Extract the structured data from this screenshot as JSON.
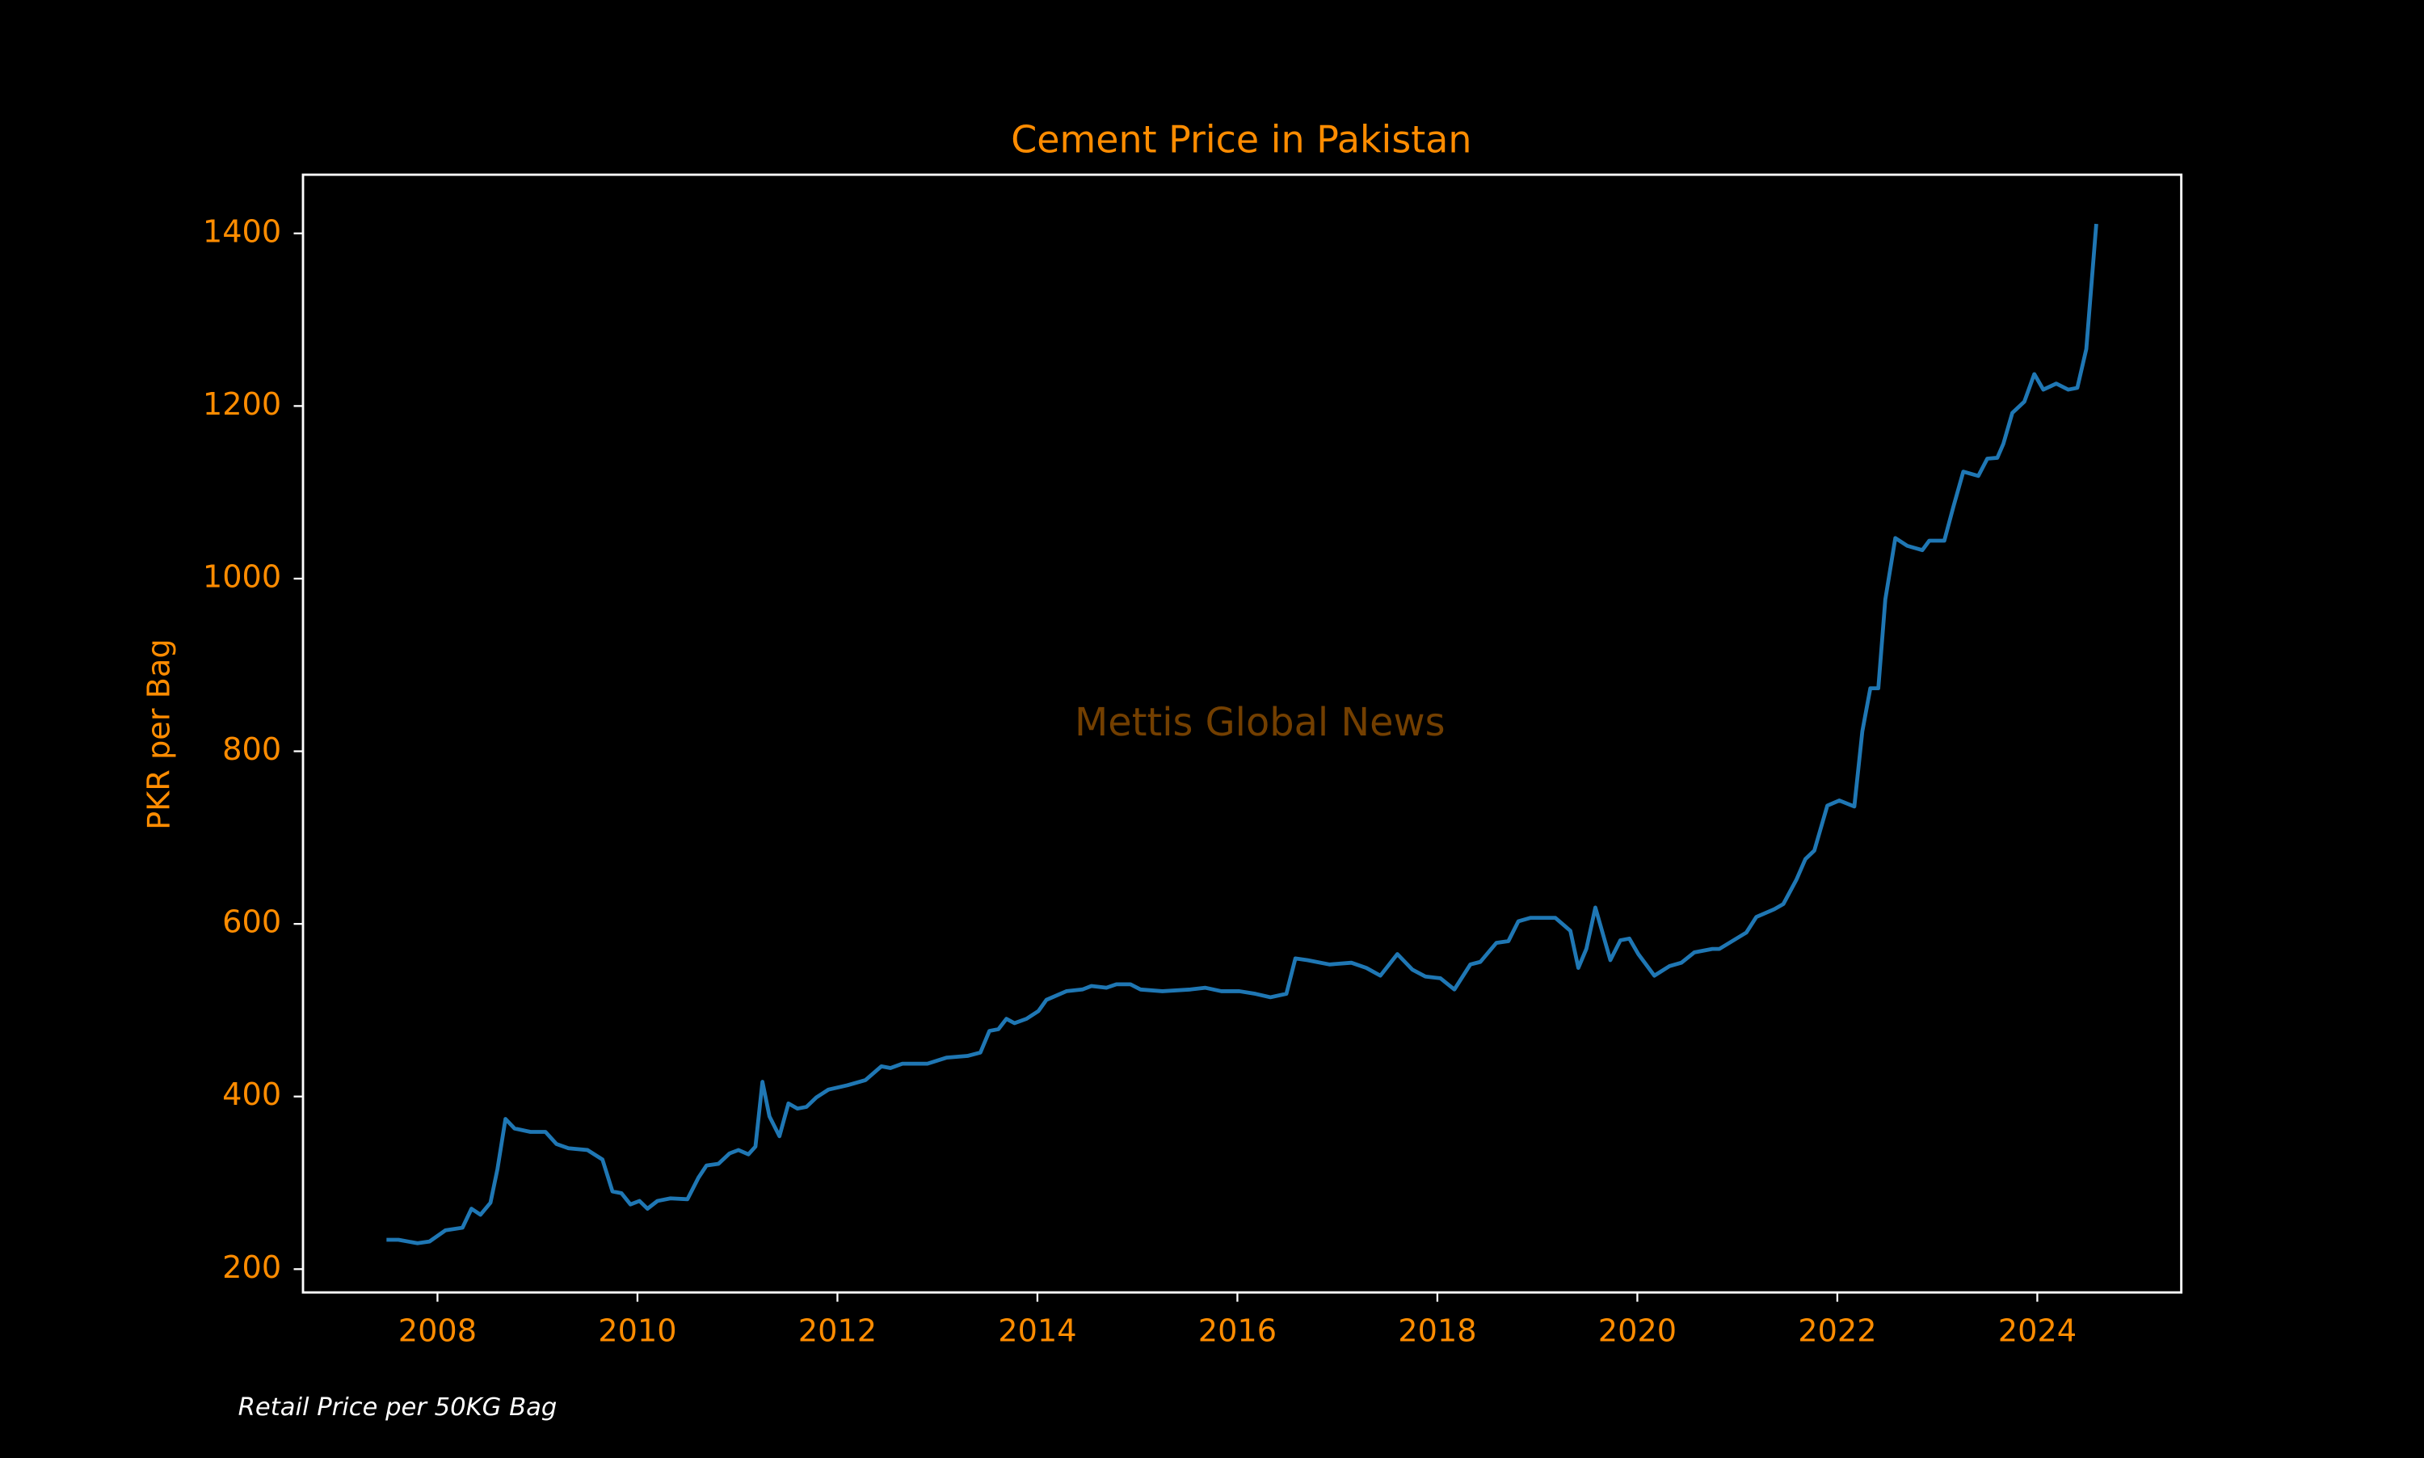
{
  "chart_data": {
    "type": "line",
    "title": "Cement Price in Pakistan",
    "ylabel": "PKR per Bag",
    "annotations": [
      "Mettis Global News",
      "Retail Price per 50KG Bag"
    ],
    "x": [
      2007.49,
      2007.61,
      2007.8,
      2007.92,
      2008.08,
      2008.25,
      2008.34,
      2008.43,
      2008.53,
      2008.6,
      2008.68,
      2008.77,
      2008.93,
      2009.08,
      2009.19,
      2009.31,
      2009.5,
      2009.65,
      2009.75,
      2009.84,
      2009.93,
      2010.02,
      2010.1,
      2010.2,
      2010.33,
      2010.5,
      2010.61,
      2010.69,
      2010.81,
      2010.92,
      2011.01,
      2011.11,
      2011.18,
      2011.25,
      2011.32,
      2011.42,
      2011.51,
      2011.6,
      2011.69,
      2011.79,
      2011.91,
      2012.1,
      2012.28,
      2012.44,
      2012.53,
      2012.65,
      2012.9,
      2013.09,
      2013.3,
      2013.43,
      2013.52,
      2013.61,
      2013.69,
      2013.77,
      2013.89,
      2014.01,
      2014.09,
      2014.29,
      2014.45,
      2014.54,
      2014.69,
      2014.79,
      2014.93,
      2015.03,
      2015.25,
      2015.53,
      2015.68,
      2015.84,
      2016.02,
      2016.18,
      2016.33,
      2016.49,
      2016.58,
      2016.7,
      2016.92,
      2017.14,
      2017.29,
      2017.43,
      2017.6,
      2017.75,
      2017.88,
      2018.03,
      2018.17,
      2018.33,
      2018.43,
      2018.59,
      2018.71,
      2018.81,
      2018.93,
      2019.18,
      2019.33,
      2019.41,
      2019.49,
      2019.58,
      2019.73,
      2019.83,
      2019.92,
      2020.01,
      2020.17,
      2020.32,
      2020.44,
      2020.57,
      2020.75,
      2020.82,
      2021.09,
      2021.19,
      2021.37,
      2021.46,
      2021.59,
      2021.68,
      2021.77,
      2021.9,
      2022.02,
      2022.17,
      2022.25,
      2022.33,
      2022.41,
      2022.48,
      2022.58,
      2022.7,
      2022.85,
      2022.92,
      2023.07,
      2023.16,
      2023.26,
      2023.41,
      2023.5,
      2023.6,
      2023.66,
      2023.75,
      2023.87,
      2023.97,
      2024.06,
      2024.19,
      2024.31,
      2024.4,
      2024.49,
      2024.59
    ],
    "series": [
      {
        "name": "Cement Price",
        "color": "#1f77b4",
        "values": [
          234,
          234,
          230,
          232,
          245,
          248,
          270,
          263,
          277,
          316,
          374,
          363,
          359,
          359,
          345,
          340,
          338,
          327,
          290,
          288,
          275,
          279,
          270,
          279,
          282,
          281,
          306,
          320,
          322,
          334,
          338,
          333,
          342,
          417,
          377,
          354,
          392,
          386,
          388,
          399,
          408,
          413,
          419,
          435,
          433,
          438,
          438,
          445,
          447,
          451,
          476,
          478,
          490,
          485,
          490,
          499,
          512,
          522,
          524,
          528,
          526,
          530,
          530,
          524,
          522,
          524,
          526,
          522,
          522,
          519,
          515,
          519,
          560,
          558,
          553,
          555,
          549,
          540,
          565,
          547,
          539,
          537,
          524,
          553,
          556,
          578,
          580,
          603,
          607,
          607,
          592,
          549,
          571,
          619,
          558,
          581,
          583,
          565,
          540,
          551,
          555,
          567,
          571,
          571,
          590,
          608,
          617,
          623,
          651,
          675,
          685,
          737,
          743,
          736,
          823,
          873,
          873,
          976,
          1047,
          1038,
          1033,
          1044,
          1044,
          1083,
          1124,
          1119,
          1139,
          1140,
          1156,
          1192,
          1205,
          1237,
          1219,
          1226,
          1219,
          1221,
          1266,
          1411
        ]
      }
    ],
    "xlim": [
      2006.655,
      2025.44
    ],
    "xticks": [
      2008,
      2010,
      2012,
      2014,
      2016,
      2018,
      2020,
      2022,
      2024
    ],
    "ylim": [
      173,
      1468
    ],
    "yticks": [
      200,
      400,
      600,
      800,
      1000,
      1200,
      1400
    ],
    "grid": false
  }
}
